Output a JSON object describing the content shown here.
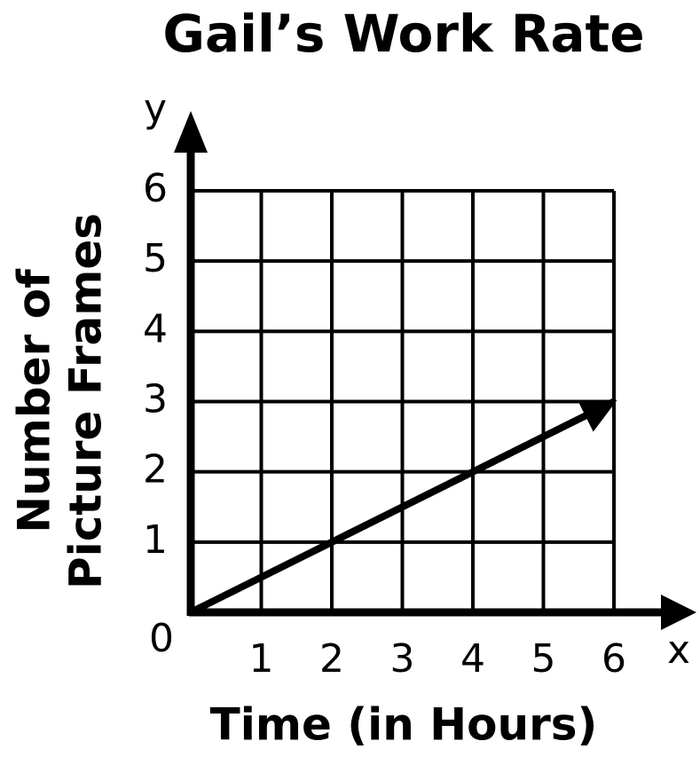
{
  "chart_data": {
    "type": "line",
    "title": "Gail’s Work Rate",
    "xlabel": "Time (in Hours)",
    "ylabel": [
      "Number of",
      "Picture Frames"
    ],
    "x_axis_name": "x",
    "y_axis_name": "y",
    "x": [
      0,
      6
    ],
    "series": [
      {
        "name": null,
        "color": "#000000",
        "values": [
          0,
          3
        ]
      }
    ],
    "xlim": [
      0,
      6
    ],
    "ylim": [
      0,
      6
    ],
    "xticks": [
      1,
      2,
      3,
      4,
      5,
      6
    ],
    "yticks": [
      0,
      1,
      2,
      3,
      4,
      5,
      6
    ],
    "grid": true
  }
}
